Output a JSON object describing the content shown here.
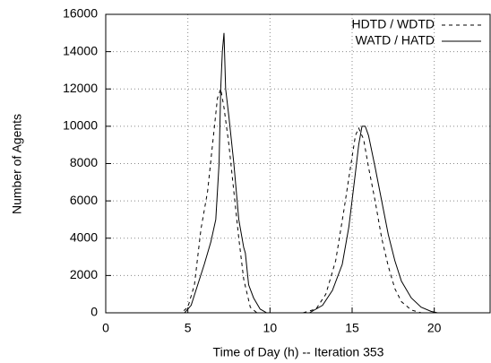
{
  "chart_data": {
    "type": "line",
    "x_label": "Time of Day (h) -- Iteration 353",
    "y_label": "Number of Agents",
    "xlim": [
      0,
      23.4
    ],
    "ylim": [
      0,
      16000
    ],
    "xticks": [
      0,
      5,
      10,
      15,
      20
    ],
    "yticks": [
      0,
      2000,
      4000,
      6000,
      8000,
      10000,
      12000,
      14000,
      16000
    ],
    "grid": true,
    "legend": "top-right",
    "series": [
      {
        "name": "HDTD / WDTD",
        "color": "#000000",
        "dash": true,
        "x": [
          0,
          4.6,
          5.0,
          5.4,
          5.8,
          6.2,
          6.5,
          6.8,
          7.0,
          7.2,
          7.5,
          7.8,
          8.1,
          8.4,
          8.8,
          9.2,
          12.0,
          12.8,
          13.4,
          14.0,
          14.5,
          14.9,
          15.2,
          15.4,
          15.7,
          16.0,
          16.4,
          16.8,
          17.2,
          17.6,
          18.0,
          18.6,
          19.2,
          23.4
        ],
        "values": [
          0,
          0,
          300,
          1500,
          4500,
          6500,
          9000,
          11500,
          12000,
          11000,
          9000,
          6500,
          4000,
          1800,
          300,
          0,
          0,
          200,
          1000,
          2800,
          5500,
          7800,
          9500,
          9900,
          9300,
          7800,
          6000,
          4000,
          2500,
          1300,
          600,
          150,
          0,
          0
        ]
      },
      {
        "name": "WATD / HATD",
        "color": "#000000",
        "dash": false,
        "x": [
          0,
          4.8,
          5.2,
          5.6,
          6.0,
          6.4,
          6.7,
          6.9,
          7.0,
          7.1,
          7.2,
          7.3,
          7.5,
          7.8,
          8.1,
          8.4,
          8.5,
          8.7,
          9.0,
          9.4,
          9.8,
          12.4,
          13.2,
          13.8,
          14.4,
          14.8,
          15.2,
          15.4,
          15.6,
          15.8,
          16.0,
          16.4,
          16.8,
          17.2,
          17.6,
          18.0,
          18.6,
          19.2,
          19.8,
          20.2,
          23.4
        ],
        "values": [
          0,
          0,
          400,
          1500,
          2600,
          3800,
          5000,
          8000,
          12000,
          14000,
          15000,
          12000,
          10500,
          8000,
          5000,
          3500,
          3200,
          1500,
          800,
          200,
          0,
          0,
          400,
          1200,
          2600,
          4600,
          7500,
          9000,
          10000,
          10000,
          9500,
          7800,
          6000,
          4200,
          2800,
          1700,
          800,
          300,
          80,
          0,
          0
        ]
      }
    ]
  }
}
